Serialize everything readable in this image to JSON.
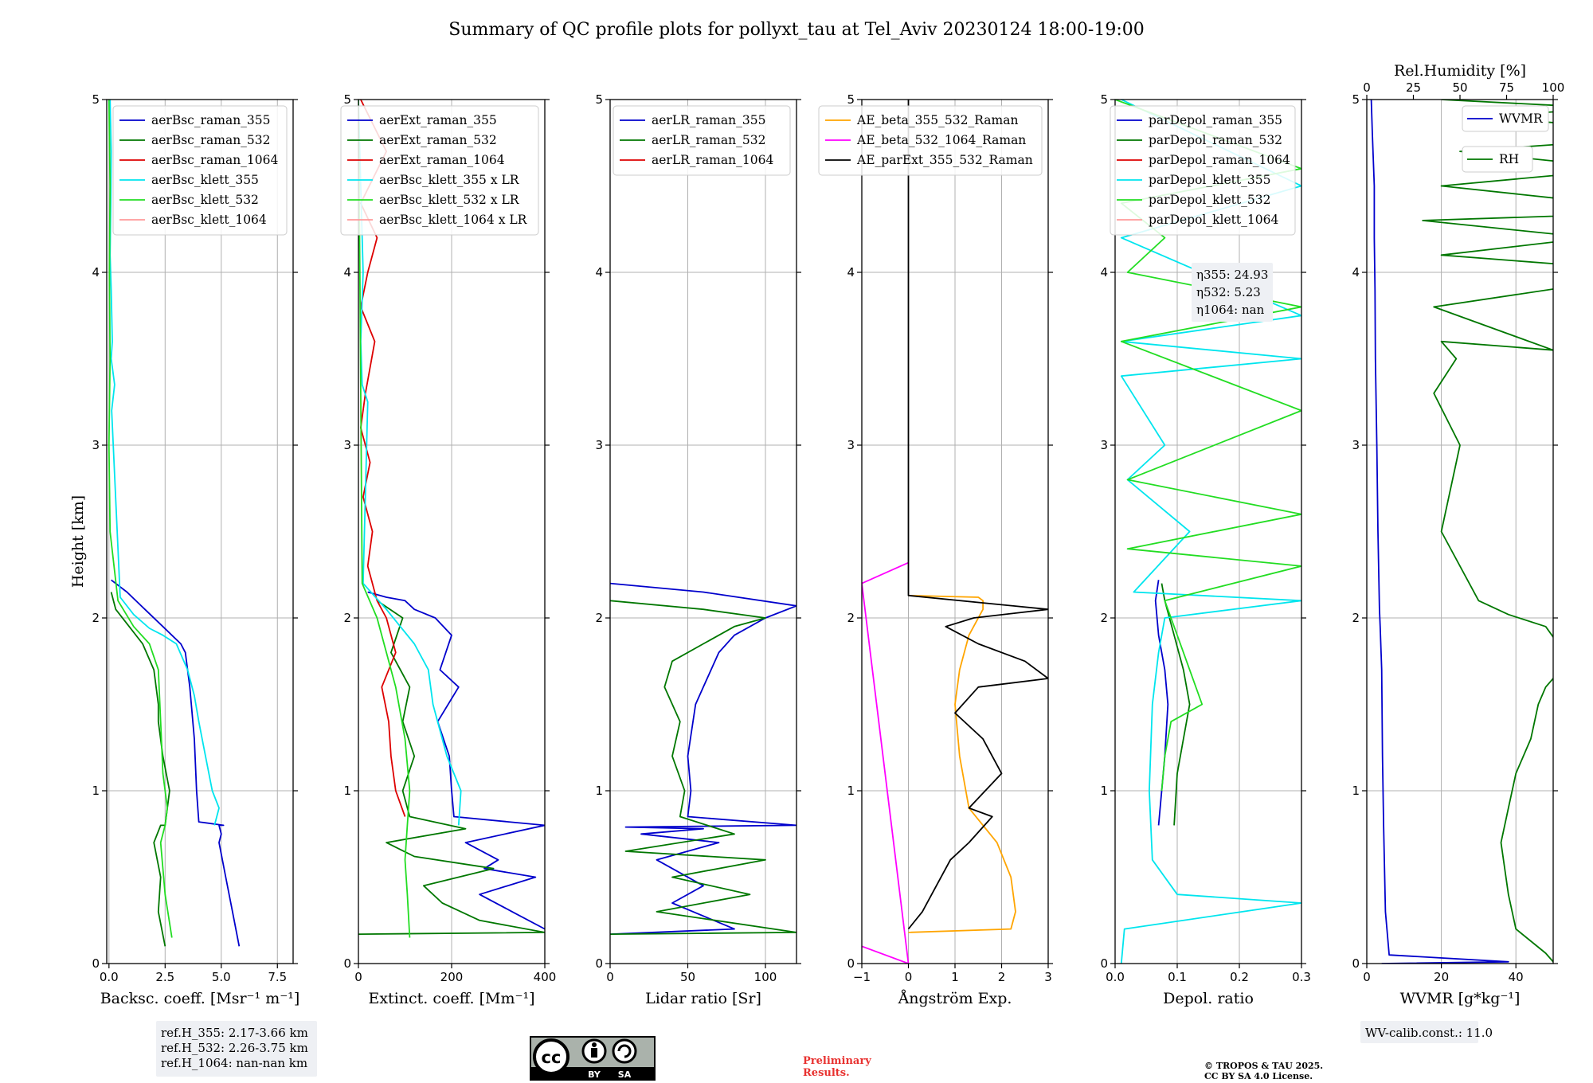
{
  "title": "Summary of QC profile plots for pollyxt_tau at Tel_Aviv 20230124 18:00-19:00",
  "ylabel": "Height [km]",
  "ref_box": [
    "ref.H_355: 2.17-3.66 km",
    "ref.H_532: 2.26-3.75 km",
    "ref.H_1064: nan-nan km"
  ],
  "eta_box": [
    "η355: 24.93",
    "η532: 5.23",
    "η1064: nan"
  ],
  "wv_calib": "WV-calib.const.: 11.0",
  "preliminary": [
    "Preliminary",
    "Results."
  ],
  "copyright": [
    "© TROPOS & TAU 2025.",
    "CC BY SA 4.0 License."
  ],
  "cc_badge": {
    "by": "BY",
    "sa": "SA"
  },
  "colors": {
    "blue": "#0000cc",
    "green": "#007700",
    "red": "#dd0000",
    "cyan": "#00e5ee",
    "lime": "#22dd22",
    "pink": "#ff9999",
    "orange": "#ffa500",
    "magenta": "#ff00ff",
    "black": "#000000"
  },
  "chart_data": [
    {
      "type": "line",
      "xlabel": "Backsc. coeff. [Msr⁻¹ m⁻¹]",
      "xlim": [
        -0.1,
        8.2
      ],
      "ylim": [
        0,
        5
      ],
      "xticks": [
        0,
        2.5,
        5,
        7.5
      ],
      "xtick_labels": [
        "0.0",
        "2.5",
        "5.0",
        "7.5"
      ],
      "yticks": [
        0,
        1,
        2,
        3,
        4,
        5
      ],
      "legend": "top-right",
      "series": [
        {
          "name": "aerBsc_raman_355",
          "color": "#0000cc",
          "x": [
            5.8,
            5.5,
            5.2,
            4.9,
            5.0,
            4.9,
            5.1,
            4.0,
            3.9,
            3.8,
            3.6,
            3.4,
            3.2,
            2.4,
            1.6,
            0.8,
            0.1
          ],
          "y": [
            0.1,
            0.3,
            0.5,
            0.7,
            0.75,
            0.8,
            0.8,
            0.82,
            1.0,
            1.3,
            1.6,
            1.8,
            1.85,
            1.95,
            2.05,
            2.15,
            2.22
          ]
        },
        {
          "name": "aerBsc_raman_532",
          "color": "#007700",
          "x": [
            2.5,
            2.2,
            2.3,
            2.0,
            2.3,
            2.5,
            2.7,
            2.4,
            2.2,
            2.2,
            2.0,
            1.5,
            0.9,
            0.3,
            0.1
          ],
          "y": [
            0.1,
            0.3,
            0.5,
            0.7,
            0.8,
            0.8,
            1.0,
            1.2,
            1.4,
            1.5,
            1.7,
            1.85,
            1.95,
            2.05,
            2.15
          ]
        },
        {
          "name": "aerBsc_raman_1064",
          "color": "#dd0000",
          "x": [],
          "y": []
        },
        {
          "name": "aerBsc_klett_355",
          "color": "#00e5ee",
          "x": [
            0.05,
            0.1,
            0.08,
            0.05,
            0.1,
            0.15,
            0.1,
            0.25,
            0.12,
            0.5,
            1.1,
            1.8,
            2.4,
            3.0,
            3.5,
            3.8,
            4.0,
            4.3,
            4.6,
            4.9,
            4.7
          ],
          "y": [
            5.0,
            4.7,
            4.4,
            4.1,
            3.9,
            3.6,
            3.5,
            3.35,
            3.2,
            2.12,
            2.02,
            1.94,
            1.9,
            1.85,
            1.7,
            1.55,
            1.4,
            1.2,
            1.0,
            0.9,
            0.8
          ]
        },
        {
          "name": "aerBsc_klett_532",
          "color": "#22dd22",
          "x": [
            0.0,
            0.05,
            0.02,
            0.05,
            0.0,
            0.05,
            0.4,
            1.1,
            1.8,
            2.2,
            2.3,
            2.4,
            2.6,
            2.5,
            2.3,
            2.5,
            2.8
          ],
          "y": [
            5.0,
            4.5,
            4.0,
            3.5,
            3.0,
            2.5,
            2.1,
            1.95,
            1.85,
            1.7,
            1.4,
            1.1,
            0.9,
            0.8,
            0.7,
            0.4,
            0.15
          ]
        },
        {
          "name": "aerBsc_klett_1064",
          "color": "#ff9999",
          "x": [],
          "y": []
        }
      ]
    },
    {
      "type": "line",
      "xlabel": "Extinct. coeff. [Mm⁻¹]",
      "xlim": [
        0,
        400
      ],
      "ylim": [
        0,
        5
      ],
      "xticks": [
        0,
        200,
        400
      ],
      "xtick_labels": [
        "0",
        "200",
        "400"
      ],
      "yticks": [
        0,
        1,
        2,
        3,
        4,
        5
      ],
      "legend": "top-right",
      "series": [
        {
          "name": "aerExt_raman_355",
          "color": "#0000cc",
          "x": [
            400,
            330,
            260,
            380,
            270,
            300,
            230,
            400,
            205,
            200,
            195,
            170,
            215,
            175,
            200,
            165,
            120,
            100,
            60,
            20
          ],
          "y": [
            0.2,
            0.3,
            0.4,
            0.5,
            0.55,
            0.6,
            0.7,
            0.8,
            0.85,
            1.0,
            1.2,
            1.4,
            1.6,
            1.7,
            1.9,
            2.0,
            2.05,
            2.1,
            2.12,
            2.15
          ]
        },
        {
          "name": "aerExt_raman_532",
          "color": "#007700",
          "x": [
            0,
            400,
            260,
            180,
            140,
            290,
            120,
            60,
            230,
            110,
            95,
            120,
            95,
            110,
            70,
            95,
            40
          ],
          "y": [
            0.17,
            0.18,
            0.25,
            0.35,
            0.45,
            0.55,
            0.62,
            0.7,
            0.78,
            0.85,
            1.0,
            1.2,
            1.4,
            1.6,
            1.8,
            2.0,
            2.1
          ]
        },
        {
          "name": "aerExt_raman_1064",
          "color": "#dd0000",
          "x": [
            100,
            80,
            70,
            65,
            50,
            80,
            60,
            40,
            20,
            30,
            10,
            25,
            5,
            15,
            35,
            5,
            20,
            40,
            5,
            60,
            5
          ],
          "y": [
            0.85,
            1.0,
            1.2,
            1.4,
            1.6,
            1.8,
            2.0,
            2.1,
            2.3,
            2.5,
            2.7,
            2.9,
            3.1,
            3.3,
            3.6,
            3.8,
            4.0,
            4.2,
            4.4,
            4.7,
            5.0
          ]
        },
        {
          "name": "aerBsc_klett_355 x LR",
          "color": "#00e5ee",
          "x": [
            0,
            5,
            10,
            5,
            8,
            20,
            10,
            60,
            90,
            120,
            150,
            160,
            190,
            220,
            215
          ],
          "y": [
            5.0,
            4.5,
            4.0,
            3.6,
            3.35,
            3.25,
            2.2,
            2.05,
            1.95,
            1.85,
            1.7,
            1.5,
            1.2,
            1.0,
            0.8
          ]
        },
        {
          "name": "aerBsc_klett_532 x LR",
          "color": "#22dd22",
          "x": [
            0,
            3,
            8,
            40,
            60,
            80,
            100,
            110,
            105,
            100,
            105,
            110
          ],
          "y": [
            5.0,
            4.0,
            2.2,
            2.0,
            1.8,
            1.6,
            1.3,
            1.0,
            0.8,
            0.6,
            0.4,
            0.15
          ]
        },
        {
          "name": "aerBsc_klett_1064 x LR",
          "color": "#ff9999",
          "x": [],
          "y": []
        }
      ]
    },
    {
      "type": "line",
      "xlabel": "Lidar ratio [Sr]",
      "xlim": [
        0,
        120
      ],
      "ylim": [
        0,
        5
      ],
      "xticks": [
        0,
        50,
        100
      ],
      "xtick_labels": [
        "0",
        "50",
        "100"
      ],
      "yticks": [
        0,
        1,
        2,
        3,
        4,
        5
      ],
      "legend": "top-right",
      "series": [
        {
          "name": "aerLR_raman_355",
          "color": "#0000cc",
          "x": [
            0,
            80,
            40,
            60,
            30,
            70,
            20,
            60,
            10,
            120,
            50,
            52,
            50,
            55,
            60,
            70,
            80,
            100,
            120,
            60,
            0
          ],
          "y": [
            0.17,
            0.2,
            0.35,
            0.45,
            0.6,
            0.7,
            0.75,
            0.78,
            0.79,
            0.8,
            0.85,
            1.0,
            1.2,
            1.5,
            1.6,
            1.8,
            1.9,
            2.0,
            2.07,
            2.15,
            2.2
          ]
        },
        {
          "name": "aerLR_raman_532",
          "color": "#007700",
          "x": [
            0,
            120,
            30,
            90,
            40,
            100,
            10,
            80,
            45,
            48,
            40,
            45,
            35,
            40,
            60,
            80,
            100,
            60,
            0
          ],
          "y": [
            0.17,
            0.18,
            0.3,
            0.4,
            0.5,
            0.6,
            0.65,
            0.75,
            0.85,
            1.0,
            1.2,
            1.4,
            1.6,
            1.75,
            1.85,
            1.95,
            2.0,
            2.05,
            2.1
          ]
        },
        {
          "name": "aerLR_raman_1064",
          "color": "#dd0000",
          "x": [],
          "y": []
        }
      ]
    },
    {
      "type": "line",
      "xlabel": "Ångström Exp.",
      "xlim": [
        -1,
        3
      ],
      "ylim": [
        0,
        5
      ],
      "xticks": [
        -1,
        0,
        1,
        2,
        3
      ],
      "xtick_labels": [
        "−1",
        "0",
        "1",
        "2",
        "3"
      ],
      "yticks": [
        0,
        1,
        2,
        3,
        4,
        5
      ],
      "legend": "top-right",
      "series": [
        {
          "name": "AE_beta_355_532_Raman",
          "color": "#ffa500",
          "x": [
            0,
            2.2,
            2.3,
            2.2,
            1.9,
            1.3,
            1.1,
            1.0,
            1.1,
            1.3,
            1.6,
            1.6,
            1.5,
            0
          ],
          "y": [
            0.18,
            0.2,
            0.3,
            0.5,
            0.7,
            0.9,
            1.2,
            1.5,
            1.7,
            1.9,
            2.05,
            2.1,
            2.12,
            2.13
          ]
        },
        {
          "name": "AE_beta_532_1064_Raman",
          "color": "#ff00ff",
          "x": [
            -1,
            0,
            -1,
            0
          ],
          "y": [
            0.1,
            0.0,
            2.2,
            2.32
          ]
        },
        {
          "name": "AE_parExt_355_532_Raman",
          "color": "#000000",
          "x": [
            0,
            0.3,
            0.6,
            0.9,
            1.3,
            1.8,
            1.3,
            2.0,
            1.6,
            1.0,
            1.5,
            3.0,
            2.5,
            1.5,
            0.8,
            1.4,
            3.0,
            0,
            0
          ],
          "y": [
            0.2,
            0.3,
            0.45,
            0.6,
            0.7,
            0.85,
            0.9,
            1.1,
            1.3,
            1.45,
            1.6,
            1.65,
            1.75,
            1.85,
            1.95,
            2.0,
            2.05,
            2.13,
            5.0
          ]
        }
      ]
    },
    {
      "type": "line",
      "xlabel": "Depol. ratio",
      "xlim": [
        0,
        0.3
      ],
      "ylim": [
        0,
        5
      ],
      "xticks": [
        0,
        0.1,
        0.2,
        0.3
      ],
      "xtick_labels": [
        "0.0",
        "0.1",
        "0.2",
        "0.3"
      ],
      "yticks": [
        0,
        1,
        2,
        3,
        4,
        5
      ],
      "legend": "top-right",
      "series": [
        {
          "name": "parDepol_raman_355",
          "color": "#0000cc",
          "x": [
            0.07,
            0.075,
            0.08,
            0.085,
            0.08,
            0.07,
            0.065,
            0.07
          ],
          "y": [
            0.8,
            1.0,
            1.2,
            1.5,
            1.7,
            1.9,
            2.1,
            2.22
          ]
        },
        {
          "name": "parDepol_raman_532",
          "color": "#007700",
          "x": [
            0.095,
            0.1,
            0.11,
            0.12,
            0.11,
            0.095,
            0.08,
            0.075
          ],
          "y": [
            0.8,
            1.1,
            1.3,
            1.5,
            1.7,
            1.9,
            2.1,
            2.2
          ]
        },
        {
          "name": "parDepol_raman_1064",
          "color": "#dd0000",
          "x": [],
          "y": []
        },
        {
          "name": "parDepol_klett_355",
          "color": "#00e5ee",
          "x": [
            0.01,
            0.015,
            0.3,
            0.1,
            0.06,
            0.055,
            0.06,
            0.07,
            0.08,
            0.3,
            0.03,
            0.12,
            0.02,
            0.08,
            0.01,
            0.3,
            0.01,
            0.3,
            0.01,
            0.3,
            0.01
          ],
          "y": [
            0.0,
            0.2,
            0.35,
            0.4,
            0.6,
            1.0,
            1.5,
            1.8,
            2.0,
            2.1,
            2.15,
            2.5,
            2.8,
            3.0,
            3.4,
            3.5,
            3.6,
            3.75,
            4.2,
            4.5,
            5.0
          ]
        },
        {
          "name": "parDepol_klett_532",
          "color": "#22dd22",
          "x": [
            0.075,
            0.08,
            0.09,
            0.14,
            0.12,
            0.1,
            0.08,
            0.3,
            0.02,
            0.3,
            0.02,
            0.3,
            0.01,
            0.3,
            0.02,
            0.08,
            0.01,
            0.3,
            0.0
          ],
          "y": [
            1.0,
            1.2,
            1.4,
            1.5,
            1.7,
            1.9,
            2.1,
            2.3,
            2.4,
            2.6,
            2.8,
            3.2,
            3.6,
            3.8,
            4.0,
            4.2,
            4.4,
            4.6,
            5.0
          ]
        },
        {
          "name": "parDepol_klett_1064",
          "color": "#ff9999",
          "x": [],
          "y": []
        }
      ]
    },
    {
      "type": "line",
      "xlabel": "WVMR [g*kg⁻¹]",
      "top_xlabel": "Rel.Humidity [%]",
      "xlim": [
        0,
        50
      ],
      "ylim": [
        0,
        5
      ],
      "xticks": [
        0,
        20,
        40
      ],
      "xtick_labels": [
        "0",
        "20",
        "40"
      ],
      "top_xlim": [
        0,
        100
      ],
      "top_xticks": [
        0,
        25,
        50,
        75,
        100
      ],
      "top_xtick_labels": [
        "0",
        "25",
        "50",
        "75",
        "100"
      ],
      "yticks": [
        0,
        1,
        2,
        3,
        4,
        5
      ],
      "legend": "top-right",
      "series": [
        {
          "name": "WVMR",
          "color": "#0000cc",
          "x": [
            4,
            38,
            6,
            5,
            4.5,
            4.2,
            4,
            3.6,
            3.4,
            3,
            2.7,
            2.3,
            2.2,
            2,
            2,
            1.5,
            1.2
          ],
          "y": [
            0.0,
            0.01,
            0.05,
            0.3,
            0.8,
            1.2,
            1.7,
            1.95,
            2.05,
            2.5,
            3.0,
            3.5,
            3.9,
            4.2,
            4.5,
            4.8,
            5.0
          ]
        },
        {
          "name": "RH",
          "color": "#007700",
          "x": [
            100,
            50,
            48,
            40,
            38,
            36,
            38,
            40,
            44,
            46,
            48,
            52,
            58,
            48,
            38,
            30,
            20,
            25,
            18,
            24,
            20,
            50,
            18,
            80,
            20,
            60,
            15,
            85,
            20,
            70,
            25,
            90,
            30,
            65,
            20
          ],
          "y": [
            0.0,
            0.01,
            0.06,
            0.2,
            0.4,
            0.7,
            0.9,
            1.1,
            1.3,
            1.5,
            1.6,
            1.7,
            1.65,
            1.95,
            2.02,
            2.1,
            2.5,
            3.0,
            3.3,
            3.5,
            3.6,
            3.55,
            3.8,
            4.0,
            4.1,
            4.2,
            4.3,
            4.35,
            4.5,
            4.6,
            4.7,
            4.8,
            4.9,
            4.95,
            5.0
          ]
        }
      ]
    }
  ]
}
